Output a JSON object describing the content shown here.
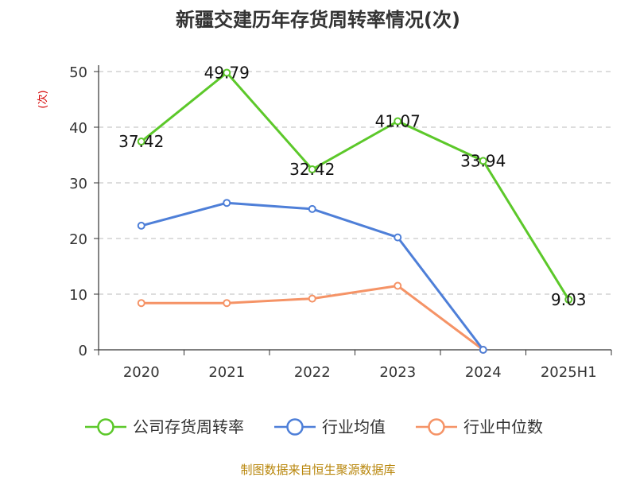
{
  "chart_data": {
    "type": "line",
    "title": "新疆交建历年存货周转率情况(次)",
    "ylabel": "(次)",
    "xlabel": "",
    "ylim": [
      0,
      50
    ],
    "yticks": [
      0,
      10,
      20,
      30,
      40,
      50
    ],
    "categories": [
      "2020",
      "2021",
      "2022",
      "2023",
      "2024",
      "2025H1"
    ],
    "grid": true,
    "legend_position": "bottom",
    "series": [
      {
        "name": "公司存货周转率",
        "color": "#5cc82a",
        "values": [
          37.42,
          49.79,
          32.42,
          41.07,
          33.94,
          9.03
        ],
        "labels": [
          "37.42",
          "49.79",
          "32.42",
          "41.07",
          "33.94",
          "9.03"
        ]
      },
      {
        "name": "行业均值",
        "color": "#4e7fd8",
        "values": [
          22.3,
          26.4,
          25.3,
          20.2,
          0,
          null
        ]
      },
      {
        "name": "行业中位数",
        "color": "#f59366",
        "values": [
          8.4,
          8.4,
          9.2,
          11.5,
          0,
          null
        ]
      }
    ]
  },
  "source": "制图数据来自恒生聚源数据库"
}
